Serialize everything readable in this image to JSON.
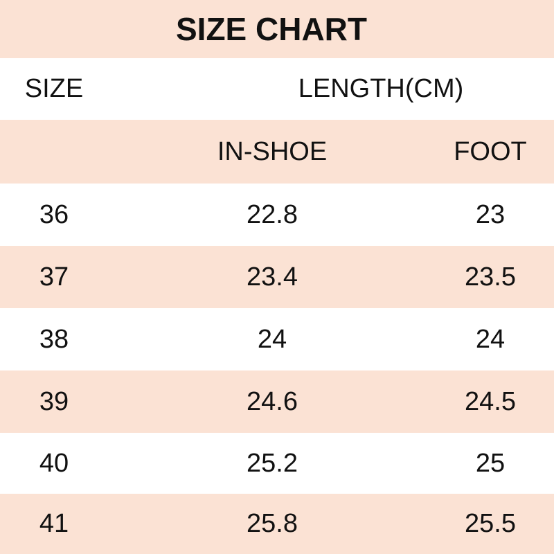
{
  "title": "SIZE CHART",
  "header": {
    "size": "SIZE",
    "length": "LENGTH(CM)",
    "in_shoe": "IN-SHOE",
    "foot": "FOOT"
  },
  "colors": {
    "band": "#fbe2d4",
    "alt": "#ffffff"
  },
  "rows": [
    {
      "size": "36",
      "in_shoe": "22.8",
      "foot": "23"
    },
    {
      "size": "37",
      "in_shoe": "23.4",
      "foot": "23.5"
    },
    {
      "size": "38",
      "in_shoe": "24",
      "foot": "24"
    },
    {
      "size": "39",
      "in_shoe": "24.6",
      "foot": "24.5"
    },
    {
      "size": "40",
      "in_shoe": "25.2",
      "foot": "25"
    },
    {
      "size": "41",
      "in_shoe": "25.8",
      "foot": "25.5"
    }
  ]
}
